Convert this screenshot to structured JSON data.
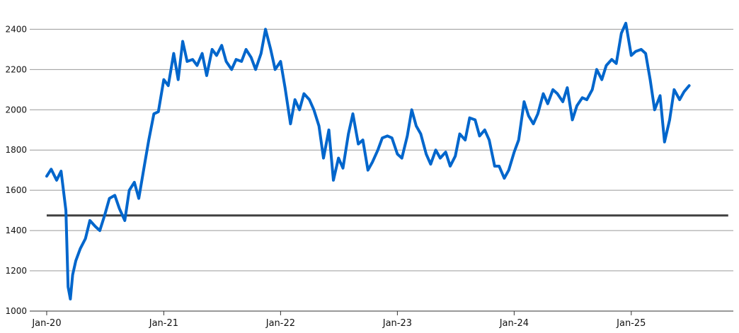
{
  "chart_data": {
    "type": "line",
    "title": "",
    "xlabel": "",
    "ylabel": "",
    "x_tick_labels": [
      "Jan-20",
      "Jan-21",
      "Jan-22",
      "Jan-23",
      "Jan-24",
      "Jan-25"
    ],
    "y_ticks": [
      1000,
      1200,
      1400,
      1600,
      1800,
      2000,
      2200,
      2400
    ],
    "ylim": [
      1000,
      2440
    ],
    "xlim": [
      "2019-11-09",
      "2025-11-16"
    ],
    "grid": "horizontal",
    "legend": "none",
    "colors": {
      "series": "#0066cc",
      "reference": "#404040",
      "grid": "#999999"
    },
    "reference_line": {
      "y": 1475,
      "x_start": "2020-01-01",
      "x_end": "2025-10-31"
    },
    "series": [
      {
        "x": [
          "2020-01-01",
          "2020-01-15",
          "2020-02-01",
          "2020-02-15",
          "2020-03-01",
          "2020-03-08",
          "2020-03-15",
          "2020-03-22",
          "2020-04-01",
          "2020-04-15",
          "2020-05-01",
          "2020-05-15",
          "2020-06-01",
          "2020-06-15",
          "2020-07-01",
          "2020-07-15",
          "2020-08-01",
          "2020-08-15",
          "2020-09-01",
          "2020-09-15",
          "2020-10-01",
          "2020-10-15",
          "2020-11-01",
          "2020-11-15",
          "2020-12-01",
          "2020-12-15",
          "2021-01-01",
          "2021-01-15",
          "2021-02-01",
          "2021-02-15",
          "2021-03-01",
          "2021-03-15",
          "2021-04-01",
          "2021-04-15",
          "2021-05-01",
          "2021-05-15",
          "2021-06-01",
          "2021-06-15",
          "2021-07-01",
          "2021-07-15",
          "2021-08-01",
          "2021-08-15",
          "2021-09-01",
          "2021-09-15",
          "2021-10-01",
          "2021-10-15",
          "2021-11-01",
          "2021-11-15",
          "2021-12-01",
          "2021-12-15",
          "2022-01-01",
          "2022-01-15",
          "2022-02-01",
          "2022-02-15",
          "2022-03-01",
          "2022-03-15",
          "2022-04-01",
          "2022-04-15",
          "2022-05-01",
          "2022-05-15",
          "2022-06-01",
          "2022-06-15",
          "2022-07-01",
          "2022-07-15",
          "2022-08-01",
          "2022-08-15",
          "2022-09-01",
          "2022-09-15",
          "2022-10-01",
          "2022-10-15",
          "2022-11-01",
          "2022-11-15",
          "2022-12-01",
          "2022-12-15",
          "2023-01-01",
          "2023-01-15",
          "2023-02-01",
          "2023-02-15",
          "2023-03-01",
          "2023-03-15",
          "2023-04-01",
          "2023-04-15",
          "2023-05-01",
          "2023-05-15",
          "2023-06-01",
          "2023-06-15",
          "2023-07-01",
          "2023-07-15",
          "2023-08-01",
          "2023-08-15",
          "2023-09-01",
          "2023-09-15",
          "2023-10-01",
          "2023-10-15",
          "2023-11-01",
          "2023-11-15",
          "2023-12-01",
          "2023-12-15",
          "2024-01-01",
          "2024-01-15",
          "2024-02-01",
          "2024-02-15",
          "2024-03-01",
          "2024-03-15",
          "2024-04-01",
          "2024-04-15",
          "2024-05-01",
          "2024-05-15",
          "2024-06-01",
          "2024-06-15",
          "2024-07-01",
          "2024-07-15",
          "2024-08-01",
          "2024-08-15",
          "2024-09-01",
          "2024-09-15",
          "2024-10-01",
          "2024-10-15",
          "2024-11-01",
          "2024-11-15",
          "2024-12-01",
          "2024-12-15",
          "2025-01-01",
          "2025-01-15",
          "2025-02-01",
          "2025-02-15",
          "2025-03-01",
          "2025-03-15",
          "2025-04-01",
          "2025-04-15",
          "2025-05-01",
          "2025-05-15",
          "2025-06-01",
          "2025-06-15",
          "2025-07-01"
        ],
        "values": [
          1670,
          1705,
          1650,
          1695,
          1500,
          1120,
          1060,
          1180,
          1250,
          1310,
          1360,
          1450,
          1420,
          1400,
          1480,
          1560,
          1575,
          1510,
          1450,
          1600,
          1640,
          1560,
          1720,
          1850,
          1980,
          1990,
          2150,
          2120,
          2280,
          2150,
          2340,
          2240,
          2250,
          2220,
          2280,
          2170,
          2300,
          2270,
          2320,
          2240,
          2200,
          2250,
          2240,
          2300,
          2260,
          2200,
          2280,
          2400,
          2300,
          2200,
          2240,
          2110,
          1930,
          2050,
          2000,
          2080,
          2050,
          2000,
          1920,
          1760,
          1900,
          1650,
          1760,
          1710,
          1880,
          1980,
          1830,
          1850,
          1700,
          1740,
          1800,
          1860,
          1870,
          1860,
          1780,
          1760,
          1870,
          2000,
          1920,
          1880,
          1780,
          1730,
          1800,
          1760,
          1790,
          1720,
          1770,
          1880,
          1850,
          1960,
          1950,
          1870,
          1900,
          1850,
          1720,
          1720,
          1660,
          1700,
          1790,
          1850,
          2040,
          1970,
          1930,
          1980,
          2080,
          2030,
          2100,
          2080,
          2040,
          2110,
          1950,
          2020,
          2060,
          2050,
          2100,
          2200,
          2150,
          2220,
          2250,
          2230,
          2380,
          2430,
          2270,
          2290,
          2300,
          2280,
          2150,
          2000,
          2070,
          1840,
          1950,
          2100,
          2050,
          2090,
          2120
        ]
      }
    ]
  }
}
